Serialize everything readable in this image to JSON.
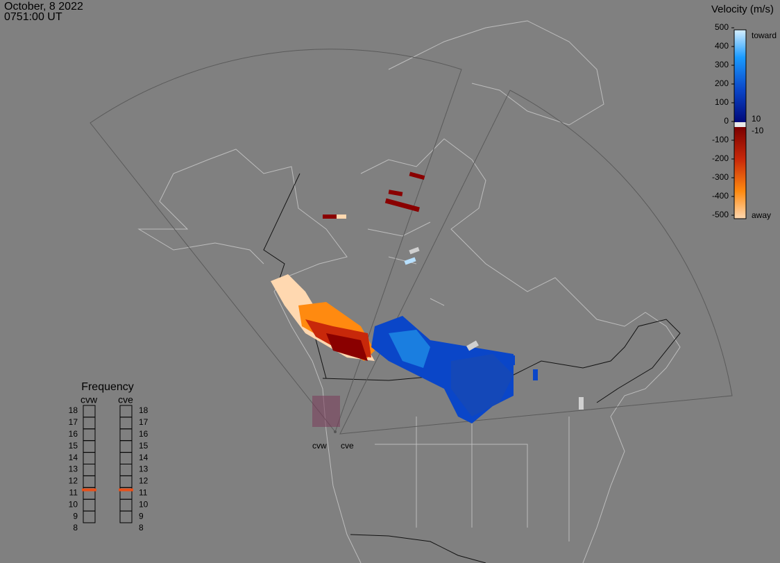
{
  "header": {
    "date": "October, 8 2022",
    "time": "0751:00 UT"
  },
  "colorbar": {
    "title": "Velocity (m/s)",
    "ticks": [
      500,
      400,
      300,
      200,
      100,
      0,
      -100,
      -200,
      -300,
      -400,
      -500
    ],
    "inner_ticks": [
      10,
      -10
    ],
    "top_label": "toward",
    "bottom_label": "away"
  },
  "frequency": {
    "title": "Frequency",
    "ticks": [
      8,
      9,
      10,
      11,
      12,
      13,
      14,
      15,
      16,
      17,
      18
    ],
    "panels": [
      {
        "name": "cvw",
        "value": 10.8
      },
      {
        "name": "cve",
        "value": 10.8
      }
    ]
  }
}
